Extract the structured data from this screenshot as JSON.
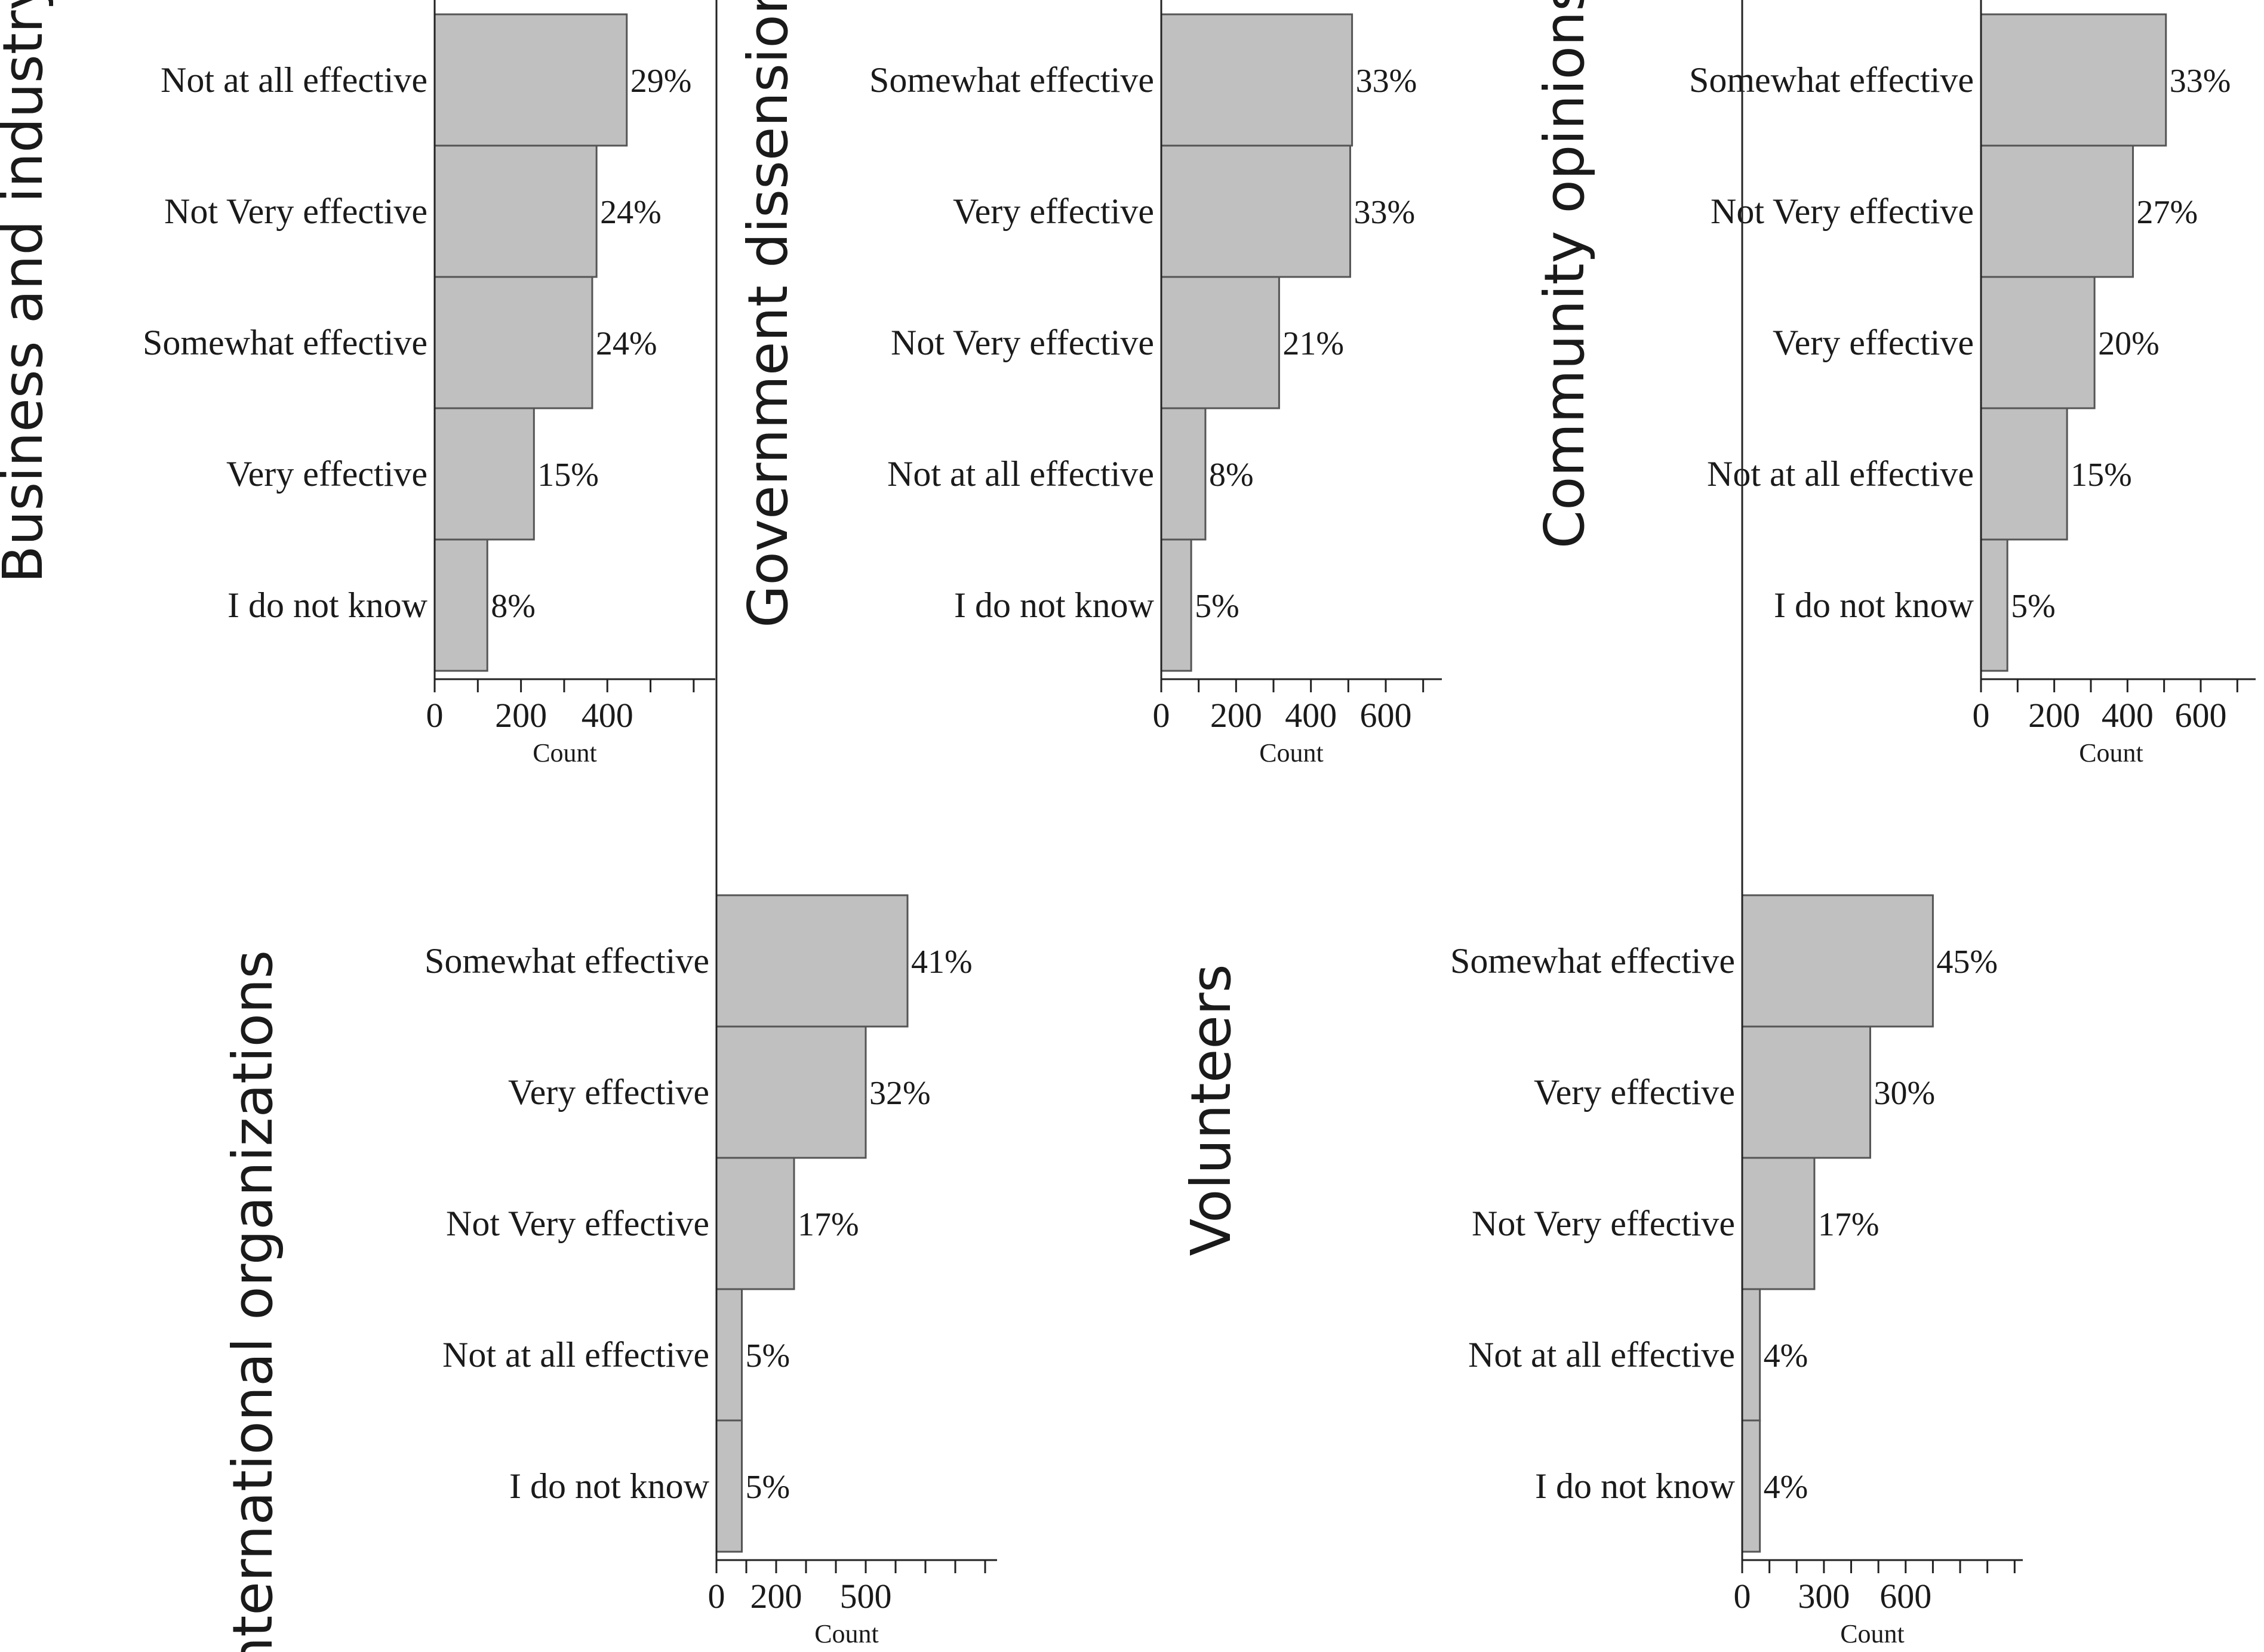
{
  "colors": {
    "bar_fill": "#c0c0c0",
    "bar_stroke": "#555555",
    "axis": "#222222",
    "text": "#1a1a1a"
  },
  "chart_data": [
    {
      "type": "bar",
      "orientation": "horizontal",
      "title": "Business and industry",
      "xlabel": "Count",
      "categories": [
        "Not at all effective",
        "Not Very effective",
        "Somewhat effective",
        "Very effective",
        "I do not know"
      ],
      "values": [
        445,
        375,
        365,
        230,
        122
      ],
      "labels": [
        "29%",
        "24%",
        "24%",
        "15%",
        "8%"
      ],
      "xlim": [
        0,
        650
      ],
      "ticks": [
        0,
        200,
        400
      ],
      "minor_step": 100
    },
    {
      "type": "bar",
      "orientation": "horizontal",
      "title": "Government dissensions",
      "xlabel": "Count",
      "categories": [
        "Somewhat effective",
        "Very effective",
        "Not Very effective",
        "Not at all effective",
        "I do not know"
      ],
      "values": [
        510,
        505,
        315,
        118,
        80
      ],
      "labels": [
        "33%",
        "33%",
        "21%",
        "8%",
        "5%"
      ],
      "xlim": [
        0,
        750
      ],
      "ticks": [
        0,
        200,
        400,
        600
      ],
      "minor_step": 100
    },
    {
      "type": "bar",
      "orientation": "horizontal",
      "title": "Community opinions",
      "xlabel": "Count",
      "categories": [
        "Somewhat effective",
        "Not Very effective",
        "Very effective",
        "Not at all effective",
        "I do not know"
      ],
      "values": [
        505,
        415,
        310,
        235,
        72
      ],
      "labels": [
        "33%",
        "27%",
        "20%",
        "15%",
        "5%"
      ],
      "xlim": [
        0,
        750
      ],
      "ticks": [
        0,
        200,
        400,
        600
      ],
      "minor_step": 100
    },
    {
      "type": "bar",
      "orientation": "horizontal",
      "title": "International organizations",
      "xlabel": "Count",
      "categories": [
        "Somewhat effective",
        "Very effective",
        "Not Very effective",
        "Not at all effective",
        "I do not know"
      ],
      "values": [
        640,
        500,
        260,
        85,
        85
      ],
      "labels": [
        "41%",
        "32%",
        "17%",
        "5%",
        "5%"
      ],
      "xlim": [
        0,
        940
      ],
      "ticks": [
        0,
        200,
        500
      ],
      "minor_step": 100
    },
    {
      "type": "bar",
      "orientation": "horizontal",
      "title": "Volunteers",
      "xlabel": "Count",
      "categories": [
        "Somewhat effective",
        "Very effective",
        "Not Very effective",
        "Not at all effective",
        "I do not know"
      ],
      "values": [
        700,
        470,
        265,
        65,
        65
      ],
      "labels": [
        "45%",
        "30%",
        "17%",
        "4%",
        "4%"
      ],
      "xlim": [
        0,
        1030
      ],
      "ticks": [
        0,
        300,
        600
      ],
      "minor_step": 100
    }
  ]
}
